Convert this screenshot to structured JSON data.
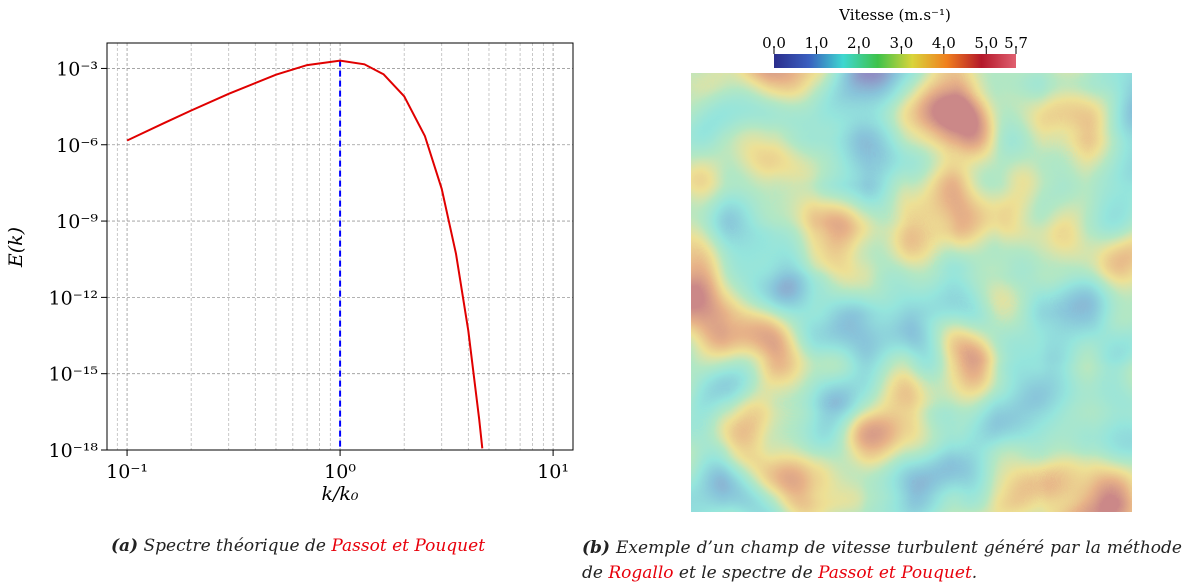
{
  "chart_data": [
    {
      "type": "line",
      "xlabel": "k/k₀",
      "ylabel": "E(k)",
      "log_x": true,
      "log_y": true,
      "grid": true,
      "x": [
        0.1,
        0.15,
        0.2,
        0.3,
        0.5,
        0.7,
        1,
        1.3,
        1.6,
        2,
        2.5,
        3,
        3.5,
        4,
        4.5,
        4.65
      ],
      "values": [
        1.47e-06,
        7.26e-06,
        2.22e-05,
        0.000101,
        0.000569,
        0.00135,
        0.00203,
        0.00146,
        0.000588,
        8.05e-05,
        2.19e-06,
        1.85e-08,
        5.15e-11,
        4.88e-14,
        1.59e-17,
        1.16e-18
      ],
      "color": "#e00000",
      "vline": {
        "x": 1,
        "color": "#0000ff"
      },
      "xlim": [
        0.0805,
        12.4
      ],
      "ylim": [
        1e-18,
        0.01
      ],
      "xticks": [
        {
          "value": 0.1,
          "label": "10⁻¹"
        },
        {
          "value": 1,
          "label": "10⁰"
        },
        {
          "value": 10,
          "label": "10¹"
        }
      ],
      "xminorticks": [
        0.09,
        0.2,
        0.3,
        0.4,
        0.5,
        0.6,
        0.7,
        0.8,
        0.9,
        2,
        3,
        4,
        5,
        6,
        7,
        8,
        9
      ],
      "yticks": [
        {
          "value": 1e-18,
          "label": "10⁻¹⁸"
        },
        {
          "value": 1e-15,
          "label": "10⁻¹⁵"
        },
        {
          "value": 1e-12,
          "label": "10⁻¹²"
        },
        {
          "value": 1e-09,
          "label": "10⁻⁹"
        },
        {
          "value": 1e-06,
          "label": "10⁻⁶"
        },
        {
          "value": 0.001,
          "label": "10⁻³"
        }
      ]
    },
    {
      "type": "colorbar",
      "title": "Vitesse (m.s⁻¹)",
      "clim": [
        0,
        5.7
      ],
      "cticks": [
        {
          "value": 0,
          "label": "0.0"
        },
        {
          "value": 1,
          "label": "1.0"
        },
        {
          "value": 2,
          "label": "2.0"
        },
        {
          "value": 3,
          "label": "3.0"
        },
        {
          "value": 4,
          "label": "4.0"
        },
        {
          "value": 5,
          "label": "5.0"
        },
        5.7
      ],
      "colors": [
        "#2b2d8c",
        "#3a5fbf",
        "#3fd7d0",
        "#3ec24a",
        "#d9d43a",
        "#f07f1e",
        "#b4182a",
        "#e06070"
      ]
    }
  ],
  "captions": [
    {
      "label": "(a)",
      "parts": [
        "Spectre théorique de ",
        "Passot et Pouquet"
      ]
    },
    {
      "label": "(b)",
      "parts": [
        "Exemple d’un champ de vitesse turbulent généré par la méthode de ",
        "Rogallo",
        " et le spectre de ",
        "Passot et Pouquet",
        "."
      ]
    }
  ]
}
